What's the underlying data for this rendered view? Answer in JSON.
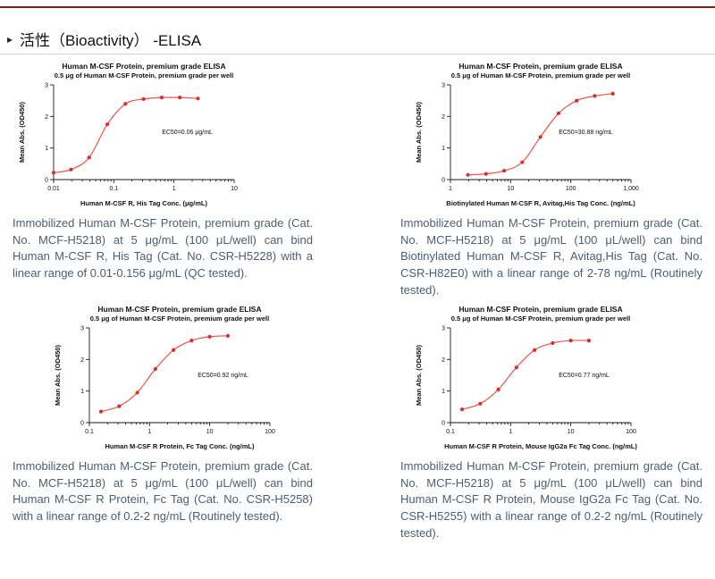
{
  "page": {
    "section_header": "活性（Bioactivity） -ELISA",
    "accent_color": "#8c1d18",
    "description_text_color": "#4d5e70"
  },
  "panels": [
    {
      "description": "Immobilized Human M-CSF Protein, premium grade (Cat. No. MCF-H5218) at 5 μg/mL (100 μL/well) can bind Human M-CSF R, His Tag (Cat. No. CSR-H5228) with a linear range of 0.01-0.156 μg/mL (QC tested)."
    },
    {
      "description": "Immobilized Human M-CSF Protein, premium grade (Cat. No. MCF-H5218) at 5 μg/mL (100 μL/well) can bind Biotinylated Human M-CSF R, Avitag,His Tag (Cat. No. CSR-H82E0) with a linear range of 2-78 ng/mL (Routinely tested)."
    },
    {
      "description": "Immobilized Human M-CSF Protein, premium grade (Cat. No. MCF-H5218) at 5 μg/mL (100 μL/well) can bind Human M-CSF R Protein, Fc Tag (Cat. No. CSR-H5258) with a linear range of 0.2-2 ng/mL (Routinely tested)."
    },
    {
      "description": "Immobilized Human M-CSF Protein, premium grade (Cat. No. MCF-H5218) at 5 μg/mL (100 μL/well) can bind Human M-CSF R Protein, Mouse IgG2a Fc Tag (Cat. No. CSR-H5255) with a linear range of 0.2-2 ng/mL (Routinely tested)."
    }
  ],
  "chart_data": [
    {
      "type": "line",
      "title": "Human M-CSF Protein, premium grade ELISA",
      "subtitle": "0.5 μg of Human M-CSF Protein, premium grade per well",
      "xlabel": "Human M-CSF R, His Tag Conc. (μg/mL)",
      "ylabel": "Mean Abs. (OD450)",
      "x_scale": "log",
      "xlim": [
        0.01,
        10
      ],
      "ylim": [
        0,
        3
      ],
      "y_ticks": [
        0,
        1,
        2,
        3
      ],
      "x_tick_labels": [
        "0.01",
        "0.1",
        "1",
        "10"
      ],
      "ec50": 0.06,
      "ec50_label": "EC50=0.06 μg/mL",
      "line_color": "#f0534b",
      "point_color": "#e02b24",
      "series": [
        {
          "name": "Human M-CSF R, His Tag",
          "x": [
            0.01,
            0.0195,
            0.039,
            0.078,
            0.156,
            0.3125,
            0.625,
            1.25,
            2.5
          ],
          "y": [
            0.22,
            0.32,
            0.7,
            1.75,
            2.4,
            2.55,
            2.6,
            2.6,
            2.57
          ]
        }
      ]
    },
    {
      "type": "line",
      "title": "Human M-CSF Protein, premium grade ELISA",
      "subtitle": "0.5 μg of Human M-CSF Protein, premium grade per well",
      "xlabel": "Biotinylated Human M-CSF R, Avitag,His Tag Conc. (ng/mL)",
      "ylabel": "Mean Abs. (OD450)",
      "x_scale": "log",
      "xlim": [
        1,
        1000
      ],
      "ylim": [
        0,
        3
      ],
      "y_ticks": [
        0,
        1,
        2,
        3
      ],
      "x_tick_labels": [
        "1",
        "10",
        "100",
        "1,000"
      ],
      "ec50": 30.88,
      "ec50_label": "EC50=30.88 ng/mL",
      "line_color": "#f0534b",
      "point_color": "#e02b24",
      "series": [
        {
          "name": "Biotinylated Human M-CSF R, Avitag,His Tag",
          "x": [
            1.95,
            3.9,
            7.8,
            15.6,
            31.25,
            62.5,
            125,
            250,
            500
          ],
          "y": [
            0.15,
            0.18,
            0.28,
            0.55,
            1.35,
            2.1,
            2.5,
            2.65,
            2.72
          ]
        }
      ]
    },
    {
      "type": "line",
      "title": "Human M-CSF Protein, premium grade ELISA",
      "subtitle": "0.5 μg of Human M-CSF Protein, premium grade per well",
      "xlabel": "Human M-CSF R Protein, Fc Tag Conc. (ng/mL)",
      "ylabel": "Mean Abs. (OD450)",
      "x_scale": "log",
      "xlim": [
        0.1,
        100
      ],
      "ylim": [
        0,
        3
      ],
      "y_ticks": [
        0,
        1,
        2,
        3
      ],
      "x_tick_labels": [
        "0.1",
        "1",
        "10",
        "100"
      ],
      "ec50": 0.92,
      "ec50_label": "EC50=0.92 ng/mL",
      "line_color": "#f0534b",
      "point_color": "#e02b24",
      "series": [
        {
          "name": "Human M-CSF R Protein, Fc Tag",
          "x": [
            0.156,
            0.3125,
            0.625,
            1.25,
            2.5,
            5,
            10,
            20
          ],
          "y": [
            0.35,
            0.52,
            0.95,
            1.7,
            2.3,
            2.6,
            2.72,
            2.75
          ]
        }
      ]
    },
    {
      "type": "line",
      "title": "Human M-CSF Protein, premium grade ELISA",
      "subtitle": "0.5 μg of Human M-CSF Protein, premium grade per well",
      "xlabel": "Human M-CSF R Protein, Mouse IgG2a Fc Tag Conc. (ng/mL)",
      "ylabel": "Mean Abs. (OD450)",
      "x_scale": "log",
      "xlim": [
        0.1,
        100
      ],
      "ylim": [
        0,
        3
      ],
      "y_ticks": [
        0,
        1,
        2,
        3
      ],
      "x_tick_labels": [
        "0.1",
        "1",
        "10",
        "100"
      ],
      "ec50": 0.77,
      "ec50_label": "EC50=0.77 ng/mL",
      "line_color": "#f0534b",
      "point_color": "#e02b24",
      "series": [
        {
          "name": "Human M-CSF R Protein, Mouse IgG2a Fc Tag",
          "x": [
            0.156,
            0.3125,
            0.625,
            1.25,
            2.5,
            5,
            10,
            20
          ],
          "y": [
            0.42,
            0.6,
            1.05,
            1.75,
            2.3,
            2.52,
            2.6,
            2.6
          ]
        }
      ]
    }
  ]
}
